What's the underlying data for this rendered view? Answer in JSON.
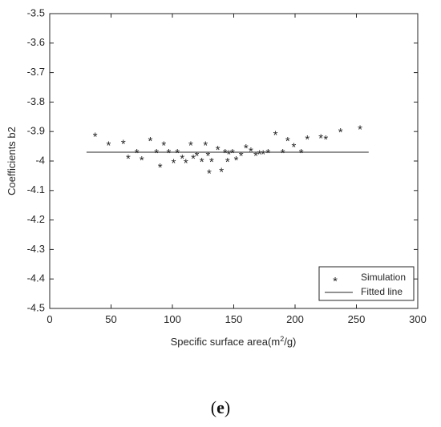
{
  "caption": {
    "open": "(",
    "letter": "e",
    "close": ")"
  },
  "chart_data": {
    "type": "scatter",
    "xlabel_main": "Specific surface area(m",
    "xlabel_sup": "2",
    "xlabel_end": "/g)",
    "ylabel": "Coefficients b2",
    "xlim": [
      0,
      300
    ],
    "ylim": [
      -4.5,
      -3.5
    ],
    "xticks": [
      0,
      50,
      100,
      150,
      200,
      250,
      300
    ],
    "xtick_labels": [
      "0",
      "50",
      "100",
      "150",
      "200",
      "250",
      "300"
    ],
    "yticks": [
      -3.5,
      -3.6,
      -3.7,
      -3.8,
      -3.9,
      -4.0,
      -4.1,
      -4.2,
      -4.3,
      -4.4,
      -4.5
    ],
    "ytick_labels": [
      "-3.5",
      "-3.6",
      "-3.7",
      "-3.8",
      "-3.9",
      "-4",
      "-4.1",
      "-4.2",
      "-4.3",
      "-4.4",
      "-4.5"
    ],
    "grid": false,
    "legend_position": "bottom-right",
    "marker_glyph": "*",
    "series": [
      {
        "name": "Simulation",
        "marker": "asterisk",
        "x": [
          37,
          48,
          60,
          64,
          71,
          75,
          82,
          87,
          90,
          93,
          97,
          101,
          104,
          108,
          111,
          115,
          117,
          120,
          124,
          127,
          129,
          130,
          132,
          137,
          140,
          143,
          145,
          146,
          149,
          152,
          156,
          160,
          164,
          168,
          171,
          174,
          178,
          184,
          190,
          194,
          199,
          205,
          210,
          221,
          225,
          237,
          253
        ],
        "y": [
          -3.92,
          -3.95,
          -3.945,
          -3.995,
          -3.975,
          -4.0,
          -3.935,
          -3.975,
          -4.025,
          -3.95,
          -3.975,
          -4.01,
          -3.975,
          -3.995,
          -4.01,
          -3.95,
          -3.995,
          -3.985,
          -4.005,
          -3.95,
          -3.985,
          -4.045,
          -4.005,
          -3.965,
          -4.04,
          -3.975,
          -4.005,
          -3.98,
          -3.975,
          -4.0,
          -3.985,
          -3.96,
          -3.97,
          -3.985,
          -3.98,
          -3.98,
          -3.975,
          -3.915,
          -3.975,
          -3.935,
          -3.955,
          -3.975,
          -3.93,
          -3.925,
          -3.93,
          -3.905,
          -3.895
        ]
      },
      {
        "name": "Fitted line",
        "type": "line",
        "x": [
          30,
          260
        ],
        "y": [
          -3.97,
          -3.97
        ]
      }
    ]
  }
}
